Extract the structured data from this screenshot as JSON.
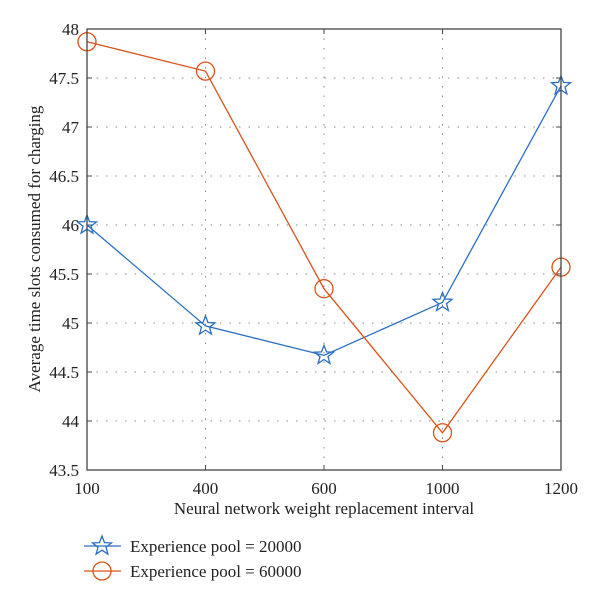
{
  "chart_data": {
    "type": "line",
    "title": "",
    "xlabel": "Neural network weight replacement interval",
    "ylabel": "Average time slots consumed for charging",
    "categories": [
      "100",
      "400",
      "600",
      "1000",
      "1200"
    ],
    "ylim": [
      43.5,
      48
    ],
    "yticks": [
      "43.5",
      "44",
      "44.5",
      "45",
      "45.5",
      "46",
      "46.5",
      "47",
      "47.5",
      "48"
    ],
    "grid": true,
    "legend_position": "bottom-left outside",
    "series": [
      {
        "name": "Experience pool = 20000",
        "marker": "star",
        "color": "#2a6fc4",
        "values": [
          46.0,
          44.97,
          44.67,
          45.21,
          47.42
        ]
      },
      {
        "name": "Experience pool = 60000",
        "marker": "circle",
        "color": "#d95319",
        "values": [
          47.87,
          47.57,
          45.35,
          43.88,
          45.57
        ]
      }
    ]
  }
}
